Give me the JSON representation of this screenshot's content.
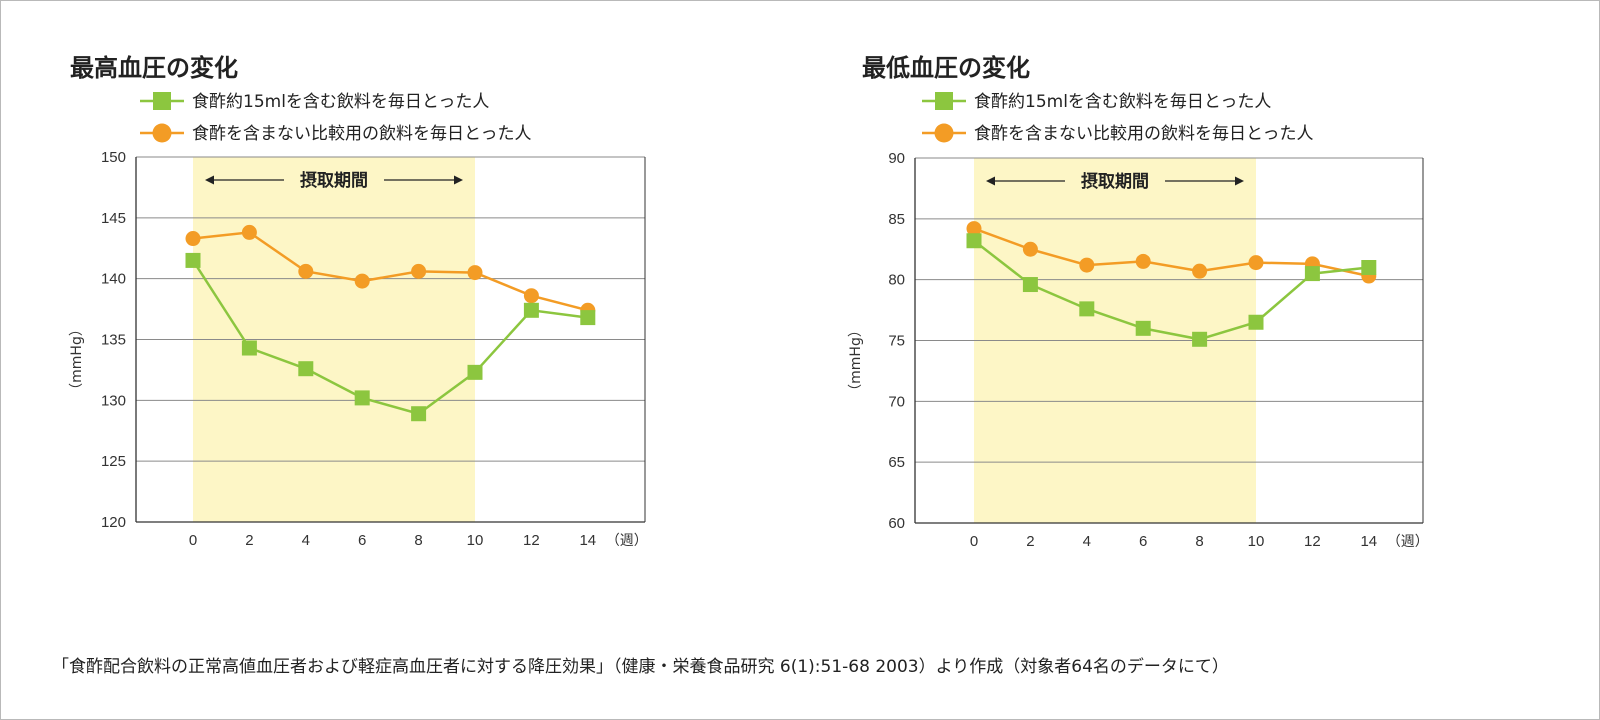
{
  "colors": {
    "vinegar": "#8cc63f",
    "control": "#f39c25",
    "band": "#fdf6c6",
    "grid": "#8a8a8a"
  },
  "chart_data": [
    {
      "type": "line",
      "title": "最高血圧の変化",
      "ylabel": "（mmHg）",
      "x_unit": "（週）",
      "x": [
        0,
        2,
        4,
        6,
        8,
        10,
        12,
        14
      ],
      "xticks": [
        "0",
        "2",
        "4",
        "6",
        "8",
        "10",
        "12",
        "14"
      ],
      "ylim": [
        120,
        150
      ],
      "yticks": [
        "120",
        "125",
        "130",
        "135",
        "140",
        "145",
        "150"
      ],
      "grid": true,
      "band": {
        "label": "摂取期間",
        "from": 0,
        "to": 10
      },
      "series": [
        {
          "name": "食酢約15mlを含む飲料を毎日とった人",
          "marker": "square",
          "values": [
            141.5,
            134.3,
            132.6,
            130.2,
            128.9,
            132.3,
            137.4,
            136.8
          ]
        },
        {
          "name": "食酢を含まない比較用の飲料を毎日とった人",
          "marker": "circle",
          "values": [
            143.3,
            143.8,
            140.6,
            139.8,
            140.6,
            140.5,
            138.6,
            137.4
          ]
        }
      ]
    },
    {
      "type": "line",
      "title": "最低血圧の変化",
      "ylabel": "（mmHg）",
      "x_unit": "（週）",
      "x": [
        0,
        2,
        4,
        6,
        8,
        10,
        12,
        14
      ],
      "xticks": [
        "0",
        "2",
        "4",
        "6",
        "8",
        "10",
        "12",
        "14"
      ],
      "ylim": [
        60,
        90
      ],
      "yticks": [
        "60",
        "65",
        "70",
        "75",
        "80",
        "85",
        "90"
      ],
      "grid": true,
      "band": {
        "label": "摂取期間",
        "from": 0,
        "to": 10
      },
      "series": [
        {
          "name": "食酢約15mlを含む飲料を毎日とった人",
          "marker": "square",
          "values": [
            83.2,
            79.6,
            77.6,
            76.0,
            75.1,
            76.5,
            80.5,
            81.0
          ]
        },
        {
          "name": "食酢を含まない比較用の飲料を毎日とった人",
          "marker": "circle",
          "values": [
            84.2,
            82.5,
            81.2,
            81.5,
            80.7,
            81.4,
            81.3,
            80.3
          ]
        }
      ]
    }
  ],
  "footnote": "「食酢配合飲料の正常高値血圧者および軽症高血圧者に対する降圧効果」（健康・栄養食品研究 6(1):51-68 2003）より作成（対象者64名のデータにて）"
}
